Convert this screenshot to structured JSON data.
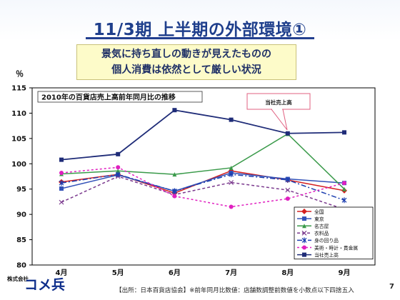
{
  "header": {
    "title": "11/3期 上半期の外部環境①",
    "subtitle_line1": "景気に持ち直しの動きが見えたものの",
    "subtitle_line2": "個人消費は依然として厳しい状況"
  },
  "chart_data": {
    "type": "line",
    "title": "2010年の百貨店売上高前年同月比の推移",
    "ylabel": "％",
    "ylim": [
      80,
      115
    ],
    "yticks": [
      80,
      85,
      90,
      95,
      100,
      105,
      110,
      115
    ],
    "categories": [
      "4月",
      "5月",
      "6月",
      "7月",
      "8月",
      "9月"
    ],
    "grid": false,
    "legend_position": "bottom-right",
    "annotation": "当社売上高",
    "series": [
      {
        "name": "全国",
        "color": "#d42020",
        "dash": "",
        "marker": "diamond",
        "values": [
          96.4,
          97.9,
          94.2,
          98.6,
          96.8,
          94.7
        ]
      },
      {
        "name": "東京",
        "color": "#3352b8",
        "dash": "",
        "marker": "square",
        "values": [
          95.1,
          97.8,
          94.6,
          98.2,
          97.0,
          96.2
        ]
      },
      {
        "name": "名古屋",
        "color": "#3a9a4a",
        "dash": "",
        "marker": "triangle",
        "values": [
          98.0,
          98.6,
          97.9,
          99.2,
          105.9,
          95.0
        ]
      },
      {
        "name": "衣料品",
        "color": "#7b3a8e",
        "dash": "4 3",
        "marker": "x",
        "values": [
          92.4,
          97.5,
          93.9,
          96.3,
          94.8,
          91.0
        ]
      },
      {
        "name": "身の回り品",
        "color": "#1d3fb0",
        "dash": "7 3 2 3",
        "marker": "star",
        "values": [
          96.2,
          97.9,
          94.6,
          97.9,
          96.8,
          92.8
        ]
      },
      {
        "name": "美術・時計・貴金属",
        "color": "#e020c0",
        "dash": "3 3",
        "marker": "circle",
        "values": [
          98.2,
          99.3,
          93.6,
          91.5,
          93.1,
          96.2
        ]
      },
      {
        "name": "当社売上高",
        "color": "#1f2c78",
        "dash": "",
        "marker": "square",
        "values": [
          100.8,
          101.9,
          110.6,
          108.7,
          106.0,
          106.2
        ]
      }
    ]
  },
  "footer": {
    "note": "【出所：日本百貨店協会】※前年同月比数値：店舗数調整前数値を小数点以下四捨五入",
    "page": "7",
    "logo_small": "株式会社",
    "logo_text": "コメ兵"
  }
}
